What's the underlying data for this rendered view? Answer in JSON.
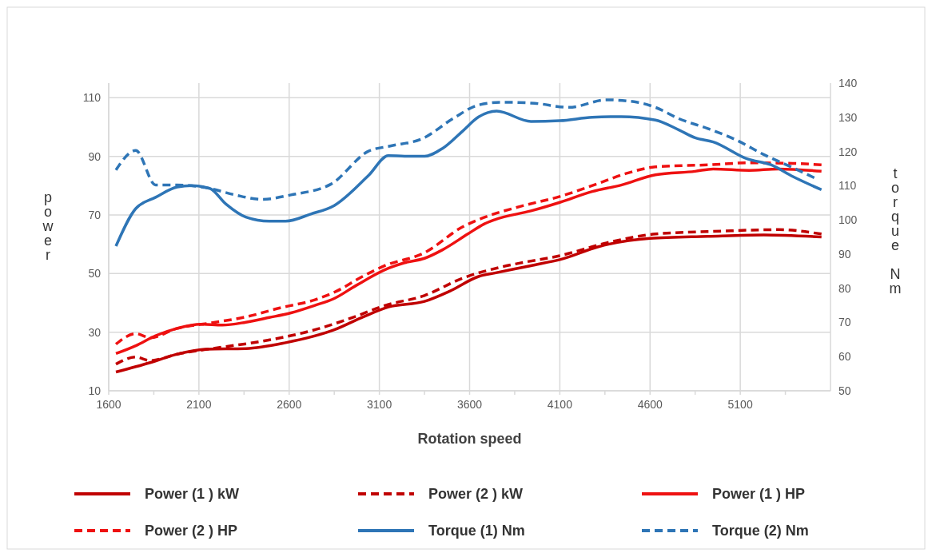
{
  "chart_data": {
    "type": "line",
    "xlabel": "Rotation speed",
    "ylabel": "power",
    "y2label": "torque Nm",
    "xlim": [
      1600,
      5600
    ],
    "xticks": [
      1600,
      {
        "value": 1850,
        "label": null
      },
      2100,
      {
        "value": 2350,
        "label": null
      },
      2600,
      {
        "value": 2850,
        "label": null
      },
      3100,
      {
        "value": 3350,
        "label": null
      },
      3600,
      {
        "value": 3850,
        "label": null
      },
      4100,
      {
        "value": 4350,
        "label": null
      },
      4600,
      {
        "value": 4850,
        "label": null
      },
      5100,
      {
        "value": 5350,
        "label": null
      }
    ],
    "ylim": [
      10,
      115
    ],
    "yticks": [
      10,
      30,
      50,
      70,
      90,
      110
    ],
    "y2lim": [
      50,
      140
    ],
    "y2ticks": [
      50,
      60,
      70,
      80,
      90,
      100,
      110,
      120,
      130,
      140
    ],
    "grid": true,
    "legend": "bottom",
    "series": [
      {
        "name": "Power (1 ) kW",
        "color": "#c00000",
        "line_style": "solid",
        "x": [
          1640,
          1830,
          1980,
          2140,
          2360,
          2580,
          2850,
          3010,
          3150,
          3350,
          3490,
          3650,
          3740,
          3940,
          4120,
          4310,
          4600,
          4920,
          5230,
          5550
        ],
        "values": [
          16.4,
          19.6,
          22.5,
          24.2,
          24.4,
          26.4,
          30.8,
          35.2,
          38.6,
          40.5,
          44.0,
          49.0,
          50.2,
          52.7,
          55.1,
          59.1,
          62.0,
          62.7,
          63.2,
          62.5
        ]
      },
      {
        "name": "Power (2 ) kW",
        "color": "#c00000",
        "line_style": "dashed",
        "x": [
          1640,
          1750,
          1830,
          1980,
          2230,
          2450,
          2770,
          2960,
          3130,
          3350,
          3560,
          3780,
          3880,
          4100,
          4360,
          4630,
          5000,
          5310,
          5550
        ],
        "values": [
          19.1,
          21.5,
          20.3,
          22.5,
          24.9,
          26.9,
          31.3,
          35.2,
          39.1,
          42.5,
          48.4,
          52.3,
          53.6,
          56.1,
          60.5,
          63.5,
          64.5,
          65.0,
          63.5
        ]
      },
      {
        "name": "Power (1 ) HP",
        "color": "#ee1111",
        "line_style": "solid",
        "x": [
          1640,
          1750,
          1860,
          1980,
          2110,
          2230,
          2360,
          2490,
          2610,
          2740,
          2850,
          2970,
          3150,
          3240,
          3350,
          3450,
          3590,
          3680,
          3740,
          3940,
          4100,
          4280,
          4440,
          4630,
          4850,
          4950,
          5150,
          5310,
          5550
        ],
        "values": [
          22.7,
          25.4,
          28.8,
          31.3,
          32.7,
          32.4,
          33.4,
          35.0,
          36.6,
          39.1,
          41.5,
          45.9,
          51.8,
          53.7,
          55.2,
          58.1,
          63.5,
          66.9,
          68.4,
          71.4,
          74.3,
          78.0,
          80.2,
          83.7,
          84.9,
          85.7,
          85.2,
          85.7,
          84.9
        ]
      },
      {
        "name": "Power (2 ) HP",
        "color": "#ee1111",
        "line_style": "dashed",
        "x": [
          1640,
          1750,
          1830,
          1980,
          2170,
          2360,
          2550,
          2740,
          2860,
          3000,
          3130,
          3350,
          3560,
          3710,
          3880,
          4100,
          4310,
          4470,
          4630,
          4920,
          5150,
          5390,
          5550
        ],
        "values": [
          25.9,
          29.5,
          28.1,
          31.3,
          33.2,
          35.2,
          38.3,
          41.0,
          43.9,
          48.8,
          52.7,
          57.1,
          65.9,
          69.8,
          72.9,
          76.3,
          80.7,
          84.2,
          86.4,
          87.1,
          87.8,
          87.6,
          87.1
        ]
      },
      {
        "name": "Torque (1) Nm",
        "color": "#2e75b6",
        "line_style": "solid",
        "axis": "y2",
        "x": [
          1640,
          1750,
          1860,
          1980,
          2060,
          2160,
          2250,
          2360,
          2490,
          2580,
          2720,
          2850,
          3040,
          3150,
          3240,
          3350,
          3450,
          3560,
          3650,
          3750,
          3940,
          4100,
          4280,
          4440,
          4630,
          4760,
          4850,
          4950,
          5140,
          5270,
          5390,
          5550
        ],
        "values": [
          92.3,
          103.3,
          106.6,
          109.6,
          110.0,
          109.2,
          104.6,
          100.8,
          99.6,
          99.6,
          101.7,
          104.2,
          113.0,
          118.8,
          118.6,
          118.6,
          120.9,
          125.9,
          130.1,
          131.8,
          128.8,
          129.0,
          130.0,
          130.2,
          129.2,
          126.3,
          124.0,
          122.8,
          117.8,
          116.1,
          112.7,
          108.8
        ]
      },
      {
        "name": "Torque (2) Nm",
        "color": "#2e75b6",
        "line_style": "dashed",
        "axis": "y2",
        "x": [
          1640,
          1750,
          1860,
          1980,
          2160,
          2300,
          2450,
          2610,
          2830,
          3040,
          3160,
          3340,
          3510,
          3650,
          3780,
          3960,
          4150,
          4360,
          4530,
          4630,
          4760,
          4920,
          5080,
          5230,
          5390,
          5510
        ],
        "values": [
          114.6,
          120.3,
          110.2,
          110.2,
          109.2,
          107.3,
          106.0,
          107.3,
          110.4,
          120.1,
          121.6,
          123.8,
          129.7,
          133.6,
          134.4,
          134.1,
          132.9,
          135.1,
          134.4,
          132.9,
          129.6,
          126.7,
          123.3,
          119.1,
          115.3,
          112.3
        ]
      }
    ]
  }
}
